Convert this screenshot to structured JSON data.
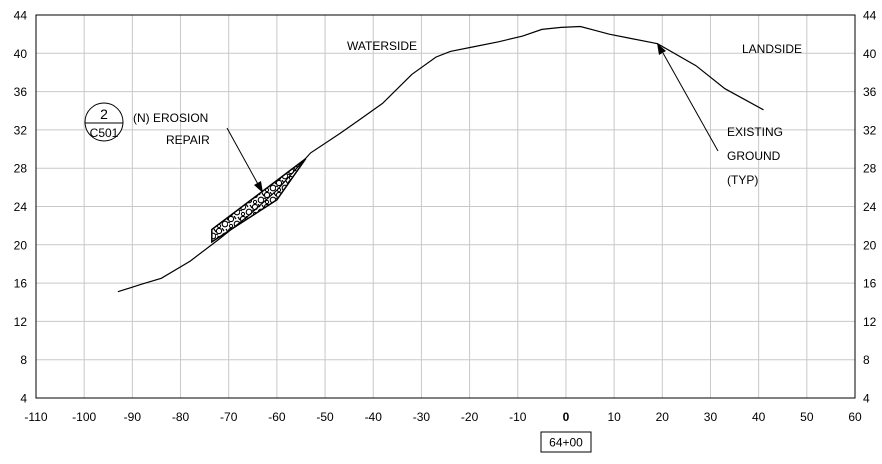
{
  "x_axis": {
    "min": -110,
    "max": 60,
    "step": 10,
    "ticks": [
      "-110",
      "-100",
      "-90",
      "-80",
      "-70",
      "-60",
      "-50",
      "-40",
      "-30",
      "-20",
      "-10",
      "0",
      "10",
      "20",
      "30",
      "40",
      "50",
      "60"
    ],
    "bold_tick": "0"
  },
  "y_axis": {
    "min": 4,
    "max": 44,
    "step": 4,
    "ticks": [
      "4",
      "8",
      "12",
      "16",
      "20",
      "24",
      "28",
      "32",
      "36",
      "40",
      "44"
    ]
  },
  "grid": true,
  "station_label": "64+00",
  "labels": {
    "waterside": "WATERSIDE",
    "landside": "LANDSIDE",
    "erosion_line1": "(N) EROSION",
    "erosion_line2": "REPAIR",
    "existing_line1": "EXISTING",
    "existing_line2": "GROUND",
    "existing_line3": "(TYP)"
  },
  "detail_callout": {
    "number": "2",
    "sheet": "C501"
  },
  "chart_data": {
    "type": "line",
    "title": "",
    "xlabel": "",
    "ylabel": "",
    "xlim": [
      -110,
      60
    ],
    "ylim": [
      4,
      44
    ],
    "series": [
      {
        "name": "",
        "x": [
          -93,
          -88,
          -84,
          -78,
          -72,
          -66,
          -60,
          -53,
          -47,
          -43,
          -38,
          -32,
          -27,
          -24,
          -19,
          -14,
          -9,
          -5,
          -1,
          3,
          6,
          9,
          13,
          19,
          27,
          33,
          41
        ],
        "y": [
          15.1,
          15.9,
          16.5,
          18.3,
          20.6,
          23.0,
          25.7,
          29.6,
          31.6,
          33.0,
          34.8,
          37.8,
          39.6,
          40.2,
          40.7,
          41.2,
          41.8,
          42.5,
          42.7,
          42.8,
          42.4,
          42.0,
          41.6,
          41.0,
          38.7,
          36.3,
          34.1
        ]
      }
    ],
    "erosion_repair_polygon": {
      "x": [
        -73.5,
        -73.5,
        -54,
        -60,
        -73.5
      ],
      "y": [
        20.3,
        21.6,
        29.0,
        24.7,
        20.3
      ]
    }
  }
}
